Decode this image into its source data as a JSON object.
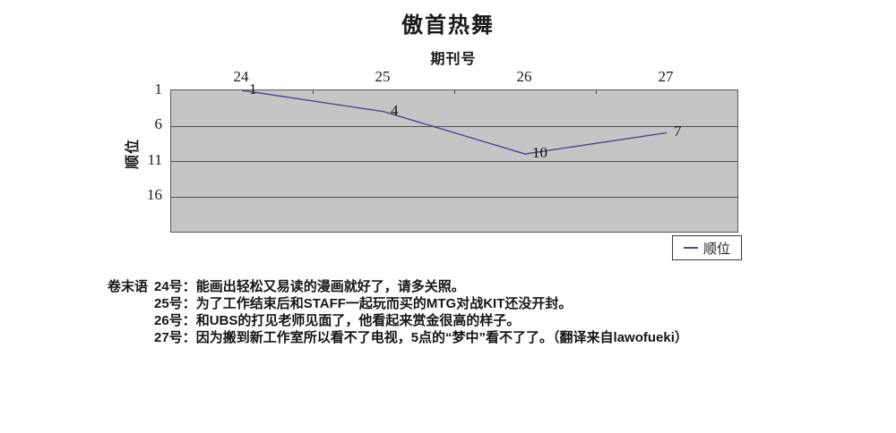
{
  "chart_data": {
    "type": "line",
    "title": "傲首热舞",
    "xlabel": "期刊号",
    "ylabel": "顺位",
    "categories": [
      "24",
      "25",
      "26",
      "27"
    ],
    "series": [
      {
        "name": "顺位",
        "values": [
          1,
          4,
          10,
          7
        ]
      }
    ],
    "y_ticks": [
      1,
      6,
      11,
      16
    ],
    "ylim": [
      1,
      21
    ],
    "y_axis_inverted": true,
    "grid": true,
    "legend_position": "bottom-right",
    "plot_bg_color": "#c5c5c5",
    "line_color": "#4a4a93"
  },
  "legend": {
    "line_symbol": "line-sample",
    "label": "顺位"
  },
  "notes": {
    "heading": "卷末语",
    "entries": [
      {
        "issue": "24号：",
        "text": "能画出轻松又易读的漫画就好了，请多关照。"
      },
      {
        "issue": "25号：",
        "text": "为了工作结束后和STAFF一起玩而买的MTG对战KIT还没开封。"
      },
      {
        "issue": "26号：",
        "text": "和UBS的打见老师见面了，他看起来赏金很高的样子。"
      },
      {
        "issue": "27号：",
        "text": "因为搬到新工作室所以看不了电视，5点的“梦中”看不了了。（翻译来自lawofueki）"
      }
    ]
  }
}
